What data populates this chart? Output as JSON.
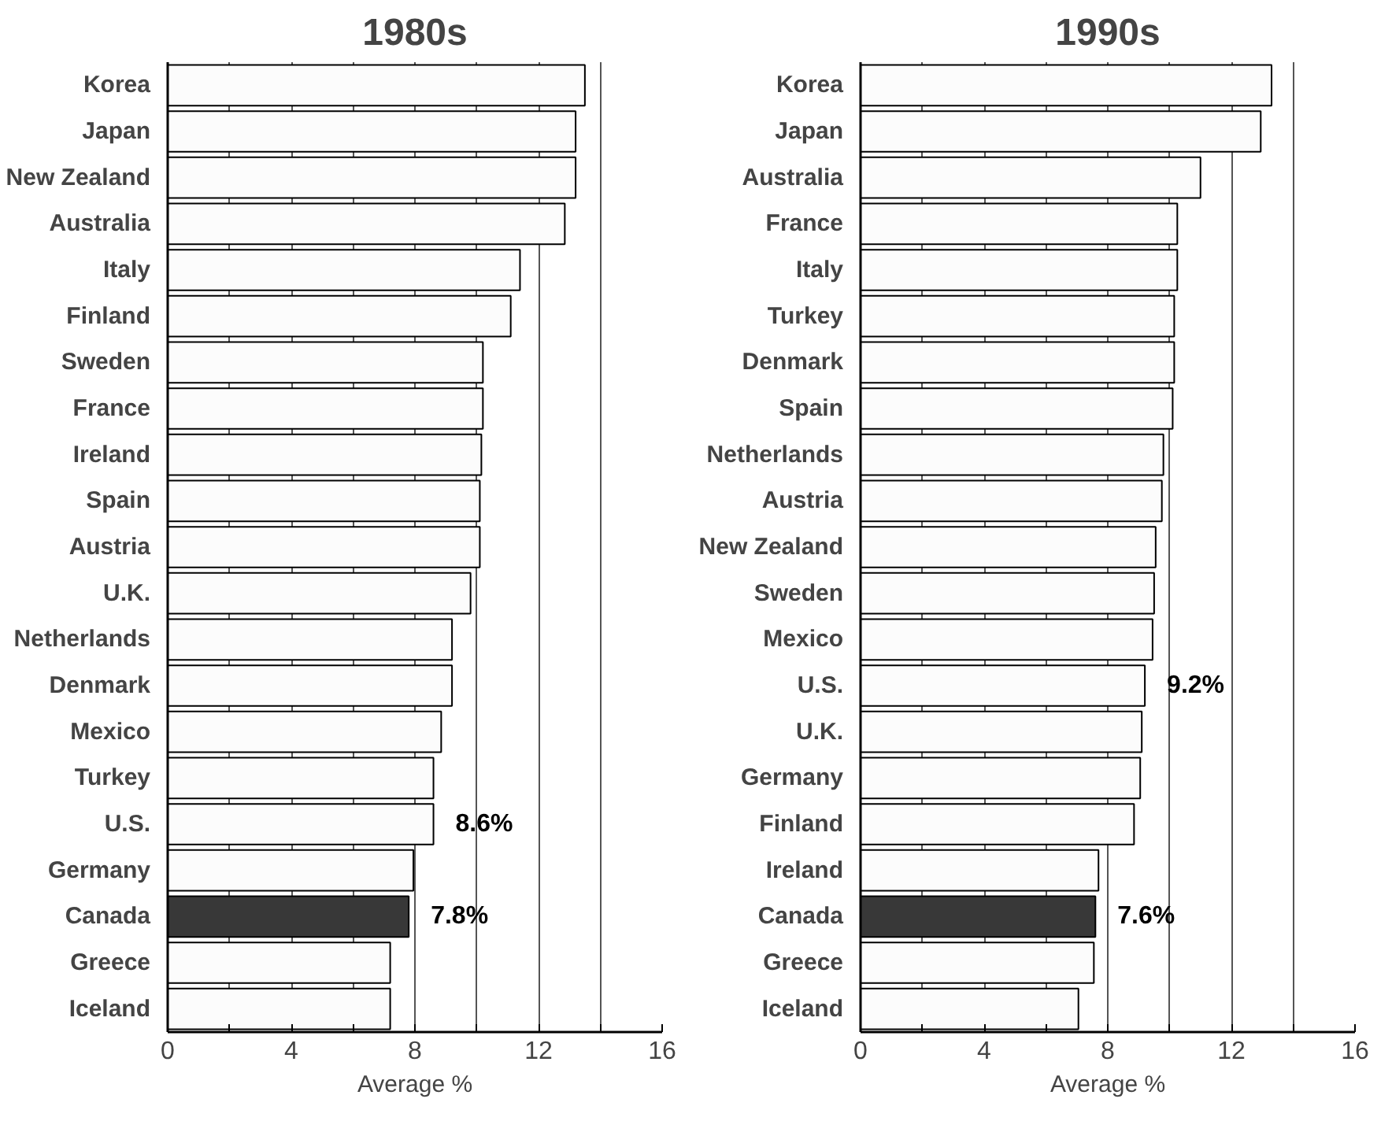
{
  "chart_data": [
    {
      "type": "bar",
      "orientation": "horizontal",
      "title": "1980s",
      "xlabel": "Average %",
      "categories": [
        "Korea",
        "Japan",
        "New Zealand",
        "Australia",
        "Italy",
        "Finland",
        "Sweden",
        "France",
        "Ireland",
        "Spain",
        "Austria",
        "U.K.",
        "Netherlands",
        "Denmark",
        "Mexico",
        "Turkey",
        "U.S.",
        "Germany",
        "Canada",
        "Greece",
        "Iceland"
      ],
      "values": [
        13.5,
        13.2,
        13.2,
        12.85,
        11.4,
        11.1,
        10.2,
        10.2,
        10.15,
        10.1,
        10.1,
        9.8,
        9.2,
        9.2,
        8.85,
        8.6,
        8.6,
        7.95,
        7.8,
        7.2,
        7.2
      ],
      "colors": [
        "#fcfcfc",
        "#fcfcfc",
        "#fcfcfc",
        "#fcfcfc",
        "#fcfcfc",
        "#fcfcfc",
        "#fcfcfc",
        "#fcfcfc",
        "#fcfcfc",
        "#fcfcfc",
        "#fcfcfc",
        "#fcfcfc",
        "#fcfcfc",
        "#fcfcfc",
        "#fcfcfc",
        "#fcfcfc",
        "#fcfcfc",
        "#fcfcfc",
        "#383838",
        "#fcfcfc",
        "#fcfcfc"
      ],
      "value_labels": [
        null,
        null,
        null,
        null,
        null,
        null,
        null,
        null,
        null,
        null,
        null,
        null,
        null,
        null,
        null,
        null,
        "8.6%",
        null,
        "7.8%",
        null,
        null
      ],
      "xlim": [
        0,
        16
      ],
      "xticks": [
        0,
        {
          "value": 2,
          "label": null
        },
        4,
        {
          "value": 6,
          "label": null
        },
        8,
        {
          "value": 10,
          "label": null
        },
        12,
        {
          "value": 14,
          "label": null
        },
        16
      ],
      "grid": "x"
    },
    {
      "type": "bar",
      "orientation": "horizontal",
      "title": "1990s",
      "xlabel": "Average %",
      "categories": [
        "Korea",
        "Japan",
        "Australia",
        "France",
        "Italy",
        "Turkey",
        "Denmark",
        "Spain",
        "Netherlands",
        "Austria",
        "New Zealand",
        "Sweden",
        "Mexico",
        "U.S.",
        "U.K.",
        "Germany",
        "Finland",
        "Ireland",
        "Canada",
        "Greece",
        "Iceland"
      ],
      "values": [
        13.3,
        12.95,
        11.0,
        10.25,
        10.25,
        10.15,
        10.15,
        10.1,
        9.8,
        9.75,
        9.55,
        9.5,
        9.45,
        9.2,
        9.1,
        9.05,
        8.85,
        7.7,
        7.6,
        7.55,
        7.05
      ],
      "colors": [
        "#fcfcfc",
        "#fcfcfc",
        "#fcfcfc",
        "#fcfcfc",
        "#fcfcfc",
        "#fcfcfc",
        "#fcfcfc",
        "#fcfcfc",
        "#fcfcfc",
        "#fcfcfc",
        "#fcfcfc",
        "#fcfcfc",
        "#fcfcfc",
        "#fcfcfc",
        "#fcfcfc",
        "#fcfcfc",
        "#fcfcfc",
        "#fcfcfc",
        "#383838",
        "#fcfcfc",
        "#fcfcfc"
      ],
      "value_labels": [
        null,
        null,
        null,
        null,
        null,
        null,
        null,
        null,
        null,
        null,
        null,
        null,
        null,
        "9.2%",
        null,
        null,
        null,
        null,
        "7.6%",
        null,
        null
      ],
      "xlim": [
        0,
        16
      ],
      "xticks": [
        0,
        {
          "value": 2,
          "label": null
        },
        4,
        {
          "value": 6,
          "label": null
        },
        8,
        {
          "value": 10,
          "label": null
        },
        12,
        {
          "value": 14,
          "label": null
        },
        16
      ],
      "grid": "x"
    }
  ]
}
